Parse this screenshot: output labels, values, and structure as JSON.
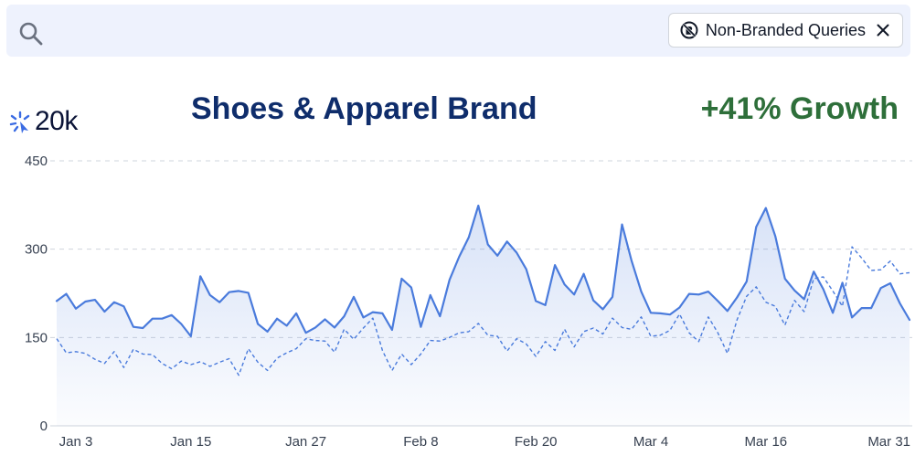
{
  "search": {
    "icon": "search-icon"
  },
  "filter": {
    "label": "Non-Branded Queries",
    "icon": "no-brand-icon",
    "close_icon": "close-icon"
  },
  "logo": {
    "text": "20k",
    "icon": "sparkle-icon",
    "color": "#3b6ce3"
  },
  "header": {
    "title": "Shoes & Apparel Brand",
    "growth": "+41% Growth",
    "title_color": "#0f2d6b",
    "growth_color": "#2e6f3a"
  },
  "chart_data": {
    "type": "line",
    "title": "Shoes & Apparel Brand",
    "xlabel": "",
    "ylabel": "",
    "ylim": [
      0,
      450
    ],
    "yticks": [
      0,
      150,
      300,
      450
    ],
    "grid": true,
    "x_tick_labels": [
      {
        "label": "Jan 3",
        "index": 0
      },
      {
        "label": "Jan 15",
        "index": 12
      },
      {
        "label": "Jan 27",
        "index": 24
      },
      {
        "label": "Feb 8",
        "index": 36
      },
      {
        "label": "Feb 20",
        "index": 48
      },
      {
        "label": "Mar 4",
        "index": 60
      },
      {
        "label": "Mar 16",
        "index": 72
      },
      {
        "label": "Mar 31",
        "index": 87
      }
    ],
    "series": [
      {
        "style": "solid-area",
        "color": "#4a7bdc",
        "values": [
          212,
          224,
          199,
          211,
          214,
          194,
          210,
          203,
          168,
          166,
          182,
          182,
          188,
          173,
          152,
          254,
          222,
          210,
          227,
          229,
          226,
          173,
          160,
          182,
          170,
          191,
          158,
          167,
          181,
          167,
          186,
          219,
          184,
          193,
          191,
          163,
          250,
          235,
          168,
          222,
          186,
          248,
          287,
          320,
          374,
          308,
          289,
          313,
          294,
          266,
          212,
          205,
          273,
          240,
          223,
          258,
          213,
          198,
          219,
          342,
          280,
          228,
          192,
          191,
          189,
          201,
          224,
          223,
          228,
          212,
          195,
          218,
          245,
          338,
          370,
          322,
          250,
          230,
          215,
          262,
          232,
          192,
          243,
          184,
          200,
          200,
          234,
          242,
          208,
          180
        ]
      },
      {
        "style": "dashed",
        "color": "#4a7bdc",
        "values": [
          148,
          124,
          126,
          123,
          113,
          106,
          126,
          99,
          130,
          122,
          121,
          106,
          97,
          110,
          104,
          109,
          101,
          108,
          114,
          86,
          131,
          108,
          94,
          115,
          124,
          131,
          148,
          145,
          144,
          125,
          164,
          147,
          166,
          183,
          128,
          94,
          122,
          104,
          122,
          145,
          144,
          150,
          158,
          160,
          174,
          154,
          152,
          127,
          148,
          139,
          118,
          143,
          128,
          164,
          134,
          160,
          166,
          156,
          183,
          167,
          164,
          185,
          152,
          154,
          162,
          190,
          158,
          143,
          185,
          158,
          123,
          180,
          220,
          236,
          210,
          203,
          171,
          213,
          194,
          250,
          253,
          229,
          203,
          304,
          285,
          264,
          265,
          280,
          258,
          260
        ]
      }
    ]
  }
}
